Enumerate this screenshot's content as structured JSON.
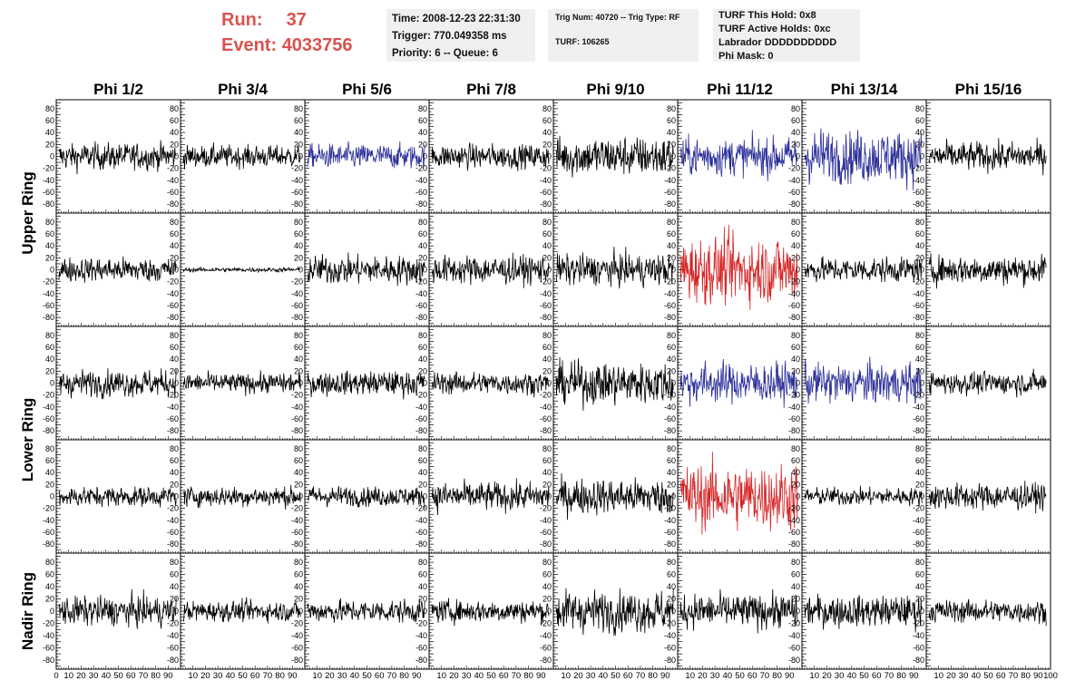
{
  "header": {
    "run_label": "Run:",
    "run_value": "37",
    "event_label": "Event:",
    "event_value": "4033756",
    "time": "Time: 2008-12-23 22:31:30",
    "trigger": "Trigger: 770.049358 ms",
    "priority": "Priority: 6 -- Queue: 6",
    "trig_num": "Trig Num: 40720 -- Trig Type: RF",
    "turf": "TURF: 106265",
    "turf_this_hold": "TURF This Hold: 0x8",
    "turf_active_holds": "TURF Active Holds: 0xc",
    "labrador": "Labrador DDDDDDDDDD",
    "phi_mask": "Phi Mask: 0"
  },
  "colors": {
    "normal": "#000000",
    "triggered": "#2b2f99",
    "hot": "#d62728",
    "header_red": "#d9534f",
    "box_bg": "#f0f0f0"
  },
  "chart_data": {
    "type": "line",
    "columns": [
      "Phi 1/2",
      "Phi 3/4",
      "Phi 5/6",
      "Phi 7/8",
      "Phi 9/10",
      "Phi 11/12",
      "Phi 13/14",
      "Phi 15/16"
    ],
    "row_groups": [
      {
        "label": "Upper Ring",
        "rows": [
          0,
          1
        ]
      },
      {
        "label": "Lower Ring",
        "rows": [
          2,
          3
        ]
      },
      {
        "label": "Nadir Ring",
        "rows": [
          4
        ]
      }
    ],
    "ylim": [
      -95,
      95
    ],
    "yticks": [
      -80,
      -60,
      -40,
      -20,
      0,
      20,
      40,
      60,
      80
    ],
    "xlim": [
      0,
      100
    ],
    "xticks": [
      0,
      10,
      20,
      30,
      40,
      50,
      60,
      70,
      80,
      90,
      100
    ],
    "samples": 260,
    "panel_colors": [
      [
        "black",
        "black",
        "blue",
        "black",
        "black",
        "blue",
        "blue",
        "black"
      ],
      [
        "black",
        "black",
        "black",
        "black",
        "black",
        "red",
        "black",
        "black"
      ],
      [
        "black",
        "black",
        "black",
        "black",
        "black",
        "blue",
        "blue",
        "black"
      ],
      [
        "black",
        "black",
        "black",
        "black",
        "black",
        "red",
        "black",
        "black"
      ],
      [
        "black",
        "black",
        "black",
        "black",
        "black",
        "black",
        "black",
        "black"
      ]
    ],
    "panel_amplitude": [
      [
        12,
        10,
        11,
        11,
        18,
        17,
        24,
        13
      ],
      [
        11,
        2,
        13,
        13,
        14,
        30,
        11,
        13
      ],
      [
        12,
        9,
        11,
        10,
        19,
        18,
        18,
        10
      ],
      [
        9,
        9,
        9,
        13,
        16,
        30,
        8,
        12
      ],
      [
        13,
        9,
        10,
        10,
        18,
        15,
        14,
        10
      ]
    ]
  }
}
